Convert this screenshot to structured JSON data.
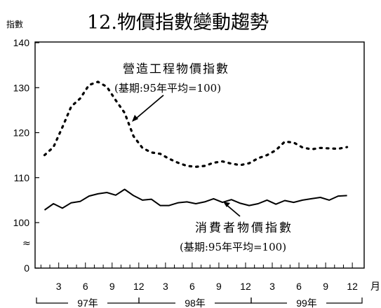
{
  "chart_data": {
    "type": "line",
    "title": "12.物價指數變動趨勢",
    "ylabel": "指數",
    "xlabel_unit": "月",
    "y_ticks": [
      "140",
      "130",
      "120",
      "110",
      "100",
      "0"
    ],
    "axis_break": "≈",
    "x_tick_labels": [
      "3",
      "6",
      "9",
      "12",
      "3",
      "6",
      "9",
      "12",
      "3",
      "6",
      "9",
      "12"
    ],
    "year_labels": [
      "97年",
      "98年",
      "99年"
    ],
    "x": [
      "97-1",
      "97-2",
      "97-3",
      "97-4",
      "97-5",
      "97-6",
      "97-7",
      "97-8",
      "97-9",
      "97-10",
      "97-11",
      "97-12",
      "98-1",
      "98-2",
      "98-3",
      "98-4",
      "98-5",
      "98-6",
      "98-7",
      "98-8",
      "98-9",
      "98-10",
      "98-11",
      "98-12",
      "99-1",
      "99-2",
      "99-3",
      "99-4",
      "99-5",
      "99-6",
      "99-7",
      "99-8",
      "99-9",
      "99-10",
      "99-11"
    ],
    "series": [
      {
        "name": "營造工程物價指數",
        "note": "(基期:95年平均=100)",
        "style": "dotted",
        "values": [
          115.0,
          116.8,
          121.2,
          125.8,
          127.6,
          130.6,
          131.3,
          130.2,
          127.2,
          124.4,
          119.2,
          116.6,
          115.6,
          115.3,
          114.2,
          113.3,
          112.6,
          112.4,
          112.6,
          113.3,
          113.6,
          113.1,
          112.8,
          113.2,
          114.3,
          115.0,
          116.1,
          118.0,
          117.8,
          116.7,
          116.3,
          116.6,
          116.5,
          116.4,
          116.8
        ]
      },
      {
        "name": "消費者物價指數",
        "note": "(基期:95年平均=100)",
        "style": "solid",
        "values": [
          102.8,
          104.2,
          103.2,
          104.4,
          104.7,
          105.9,
          106.4,
          106.7,
          106.1,
          107.4,
          106.0,
          105.0,
          105.2,
          103.8,
          103.8,
          104.4,
          104.6,
          104.2,
          104.6,
          105.3,
          104.5,
          105.1,
          104.3,
          103.8,
          104.2,
          105.0,
          104.1,
          104.9,
          104.5,
          105.0,
          105.3,
          105.6,
          105.0,
          105.9,
          106.0
        ]
      }
    ],
    "ylim": [
      100,
      140
    ],
    "grid": false,
    "colors": {
      "line": "#000000",
      "background": "#ffffff"
    }
  }
}
